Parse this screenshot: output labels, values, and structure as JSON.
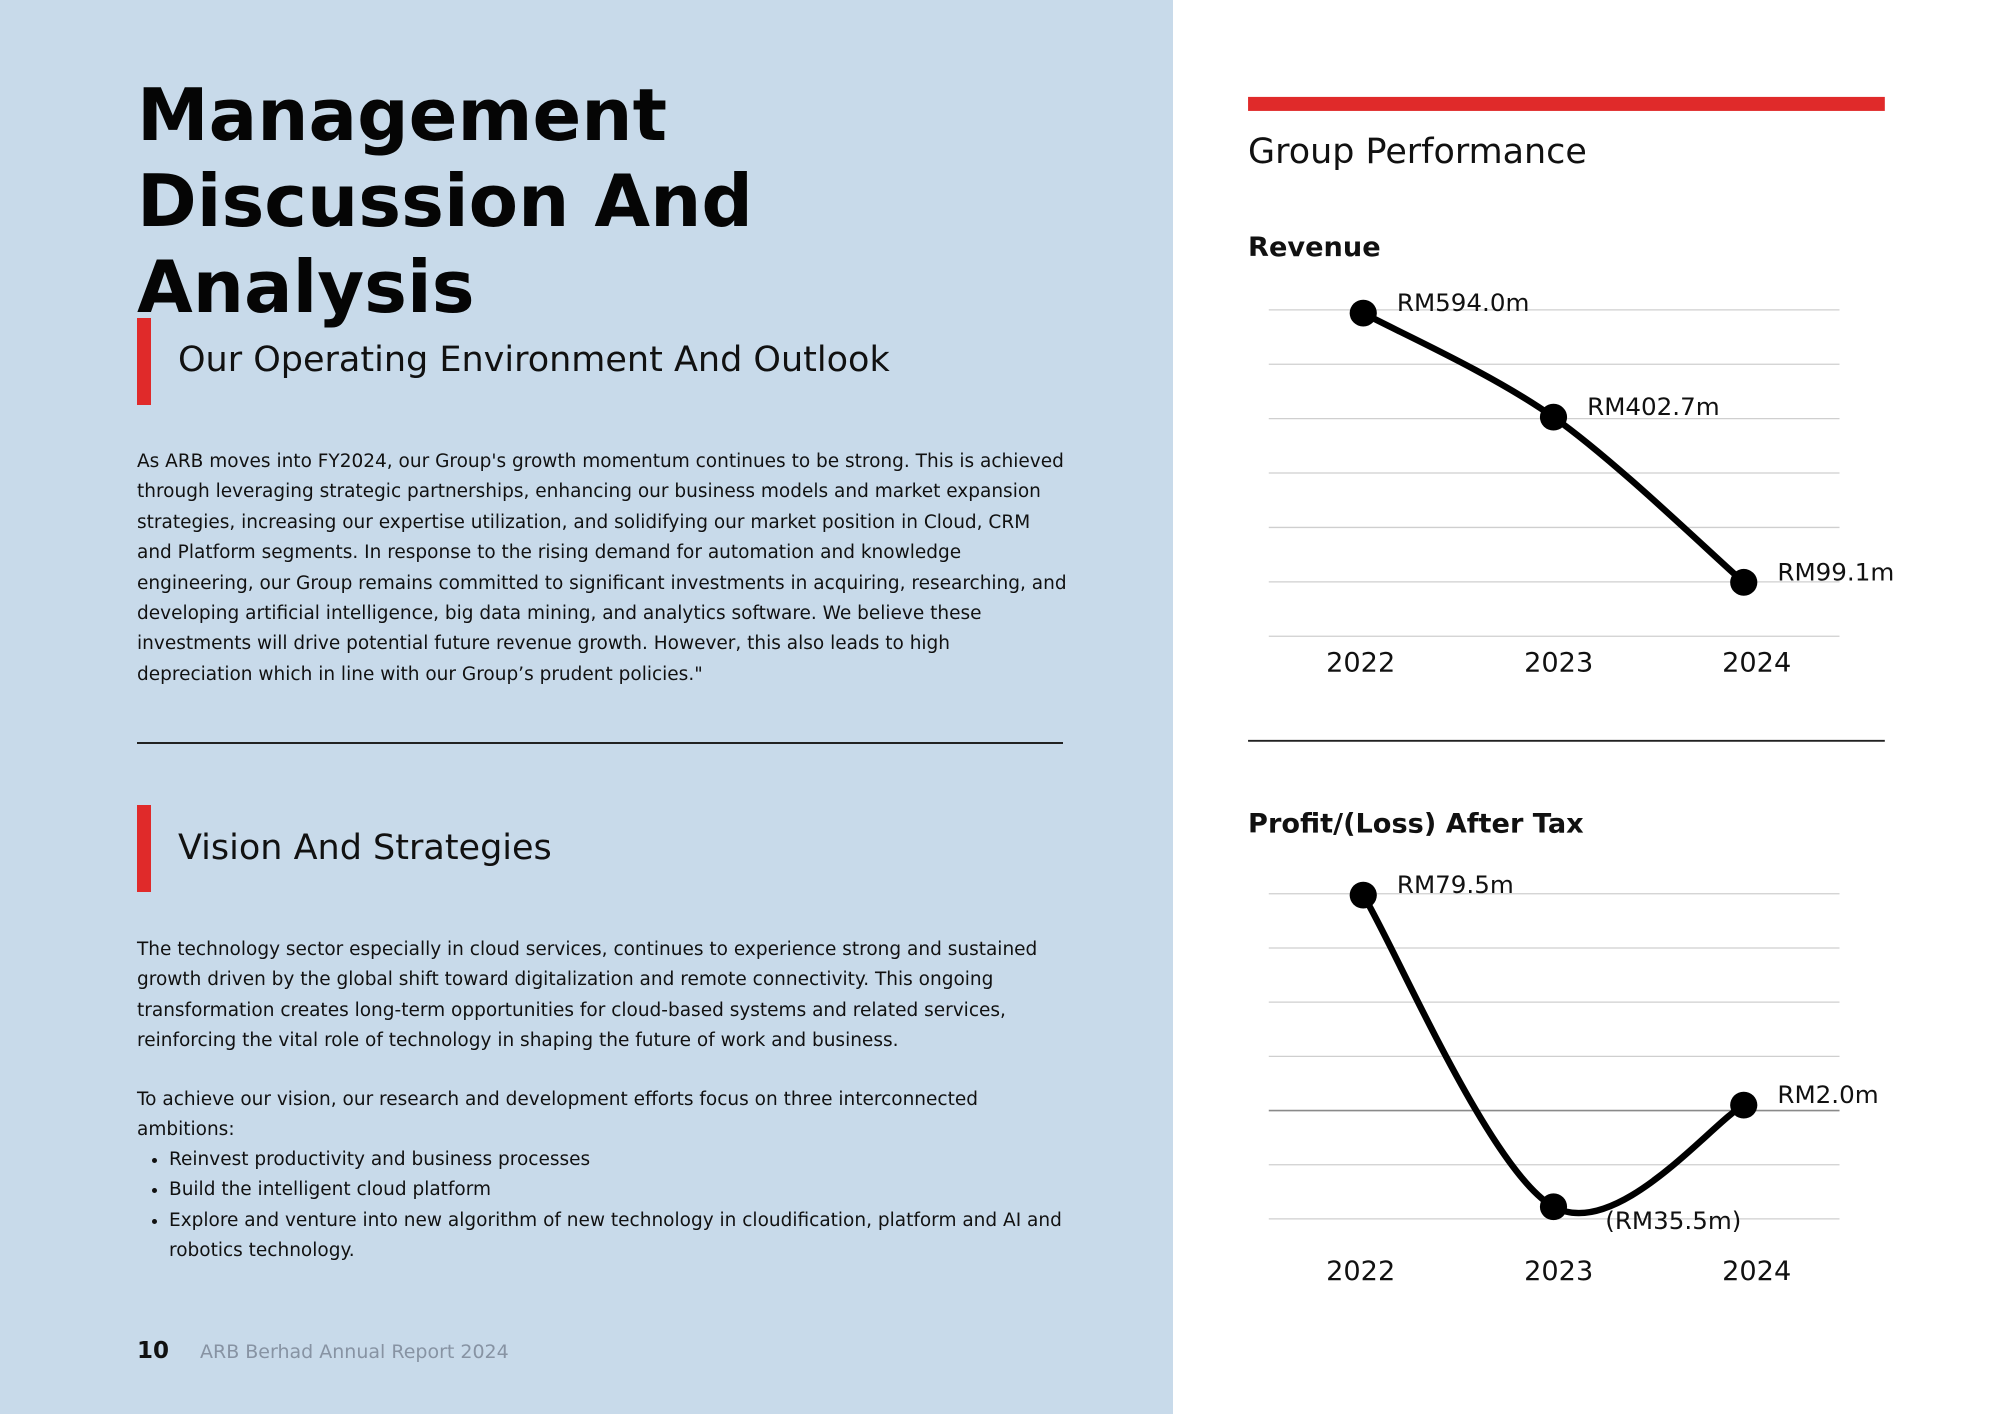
{
  "header": {
    "title": "Management Discussion And Analysis"
  },
  "sections": [
    {
      "heading": "Our Operating Environment And Outlook",
      "paragraphs": [
        "As ARB moves into FY2024, our Group's growth momentum continues to be strong. This is achieved through leveraging strategic partnerships, enhancing our business models and market expansion strategies, increasing our expertise utilization, and solidifying our market position in Cloud, CRM and Platform segments. In response to the rising demand for automation and knowledge engineering, our Group remains committed to significant investments in acquiring, researching, and developing artificial intelligence, big data mining, and analytics software. We believe these investments will drive potential future revenue growth. However, this also leads to high depreciation which in line with our Group’s prudent policies.\""
      ]
    },
    {
      "heading": "Vision And Strategies",
      "paragraphs": [
        "The technology sector especially in cloud services, continues to experience strong and sustained growth driven by the global shift toward digitalization and remote connectivity. This ongoing transformation creates long-term opportunities for cloud-based systems and related services, reinforcing the vital role of technology in shaping the future of work and business.",
        "To achieve our vision, our research and development efforts focus on three interconnected ambitions:"
      ],
      "bullets": [
        "Reinvest productivity and business processes",
        "Build the intelligent cloud platform",
        "Explore and venture into new algorithm of new technology in cloudification, platform and AI and robotics technology."
      ]
    }
  ],
  "footer": {
    "page": "10",
    "text": "ARB Berhad Annual Report 2024"
  },
  "panel": {
    "title": "Group Performance"
  },
  "chart_data": [
    {
      "type": "line",
      "title": "Revenue",
      "categories": [
        "2022",
        "2023",
        "2024"
      ],
      "values": [
        594.0,
        402.7,
        99.1
      ],
      "value_labels": [
        "RM594.0m",
        "RM402.7m",
        "RM99.1m"
      ],
      "color": "#000000",
      "ylim": [
        0,
        600
      ],
      "yticks": [
        0,
        100,
        200,
        300,
        400,
        500,
        600
      ],
      "grid": true
    },
    {
      "type": "line",
      "title": "Profit/(Loss) After Tax",
      "categories": [
        "2022",
        "2023",
        "2024"
      ],
      "values": [
        79.5,
        -35.5,
        2.0
      ],
      "value_labels": [
        "RM79.5m",
        "(RM35.5m)",
        "RM2.0m"
      ],
      "color": "#000000",
      "ylim": [
        -40,
        80
      ],
      "yticks": [
        -40,
        -20,
        0,
        20,
        40,
        60,
        80
      ],
      "grid": true
    }
  ]
}
